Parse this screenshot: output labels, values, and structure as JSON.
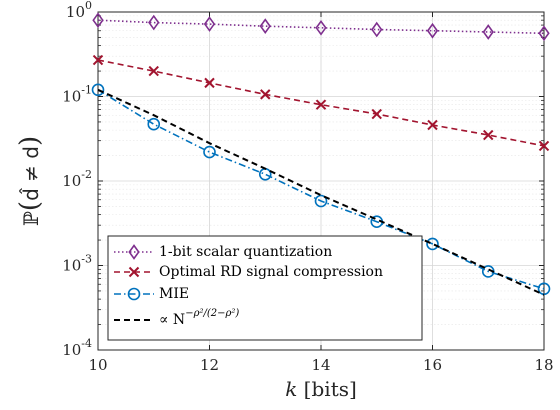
{
  "chart_data": {
    "type": "line",
    "xlabel": "k [bits]",
    "ylabel": "ℙ(d̂ ≠ d)",
    "x": [
      10,
      11,
      12,
      13,
      14,
      15,
      16,
      17,
      18
    ],
    "xlim": [
      10,
      18
    ],
    "ylim": [
      0.0001,
      1
    ],
    "yscale": "log",
    "grid": true,
    "x_ticks": [
      "10",
      "12",
      "14",
      "16",
      "18"
    ],
    "legend_placement": "bottom-left",
    "series": [
      {
        "name": "1-bit scalar quantization",
        "values": [
          0.8,
          0.75,
          0.72,
          0.68,
          0.65,
          0.62,
          0.6,
          0.58,
          0.56
        ],
        "color": "#7E2F8E",
        "style": "dotted",
        "marker": "diamond"
      },
      {
        "name": "Optimal RD signal compression",
        "values": [
          0.27,
          0.2,
          0.145,
          0.106,
          0.08,
          0.062,
          0.046,
          0.035,
          0.026
        ],
        "color": "#A2142F",
        "style": "dashed",
        "marker": "x"
      },
      {
        "name": "MIE",
        "values": [
          0.12,
          0.047,
          0.022,
          0.012,
          0.0058,
          0.0033,
          0.0018,
          0.00085,
          0.00053
        ],
        "color": "#0072BD",
        "style": "dashdot",
        "marker": "circle"
      },
      {
        "name": "∝ N",
        "values": [
          0.12,
          0.06,
          0.028,
          0.014,
          0.0068,
          0.0035,
          0.0018,
          0.0009,
          0.00045
        ],
        "color": "#000000",
        "style": "dashed",
        "marker": "none"
      }
    ]
  },
  "axis_text": {
    "x_italic": "k",
    "x_rest": " [bits]",
    "y_p": "ℙ",
    "y_open": "(",
    "y_d_hat": "d̂",
    "y_neq": " ≠ ",
    "y_d": "d",
    "y_close": ")",
    "y_ticks": [
      {
        "base": "10",
        "exp": "0"
      },
      {
        "base": "10",
        "exp": "-1"
      },
      {
        "base": "10",
        "exp": "-2"
      },
      {
        "base": "10",
        "exp": "-3"
      },
      {
        "base": "10",
        "exp": "-4"
      }
    ],
    "legend_exponent": "−ρ²/(2−ρ²)"
  }
}
